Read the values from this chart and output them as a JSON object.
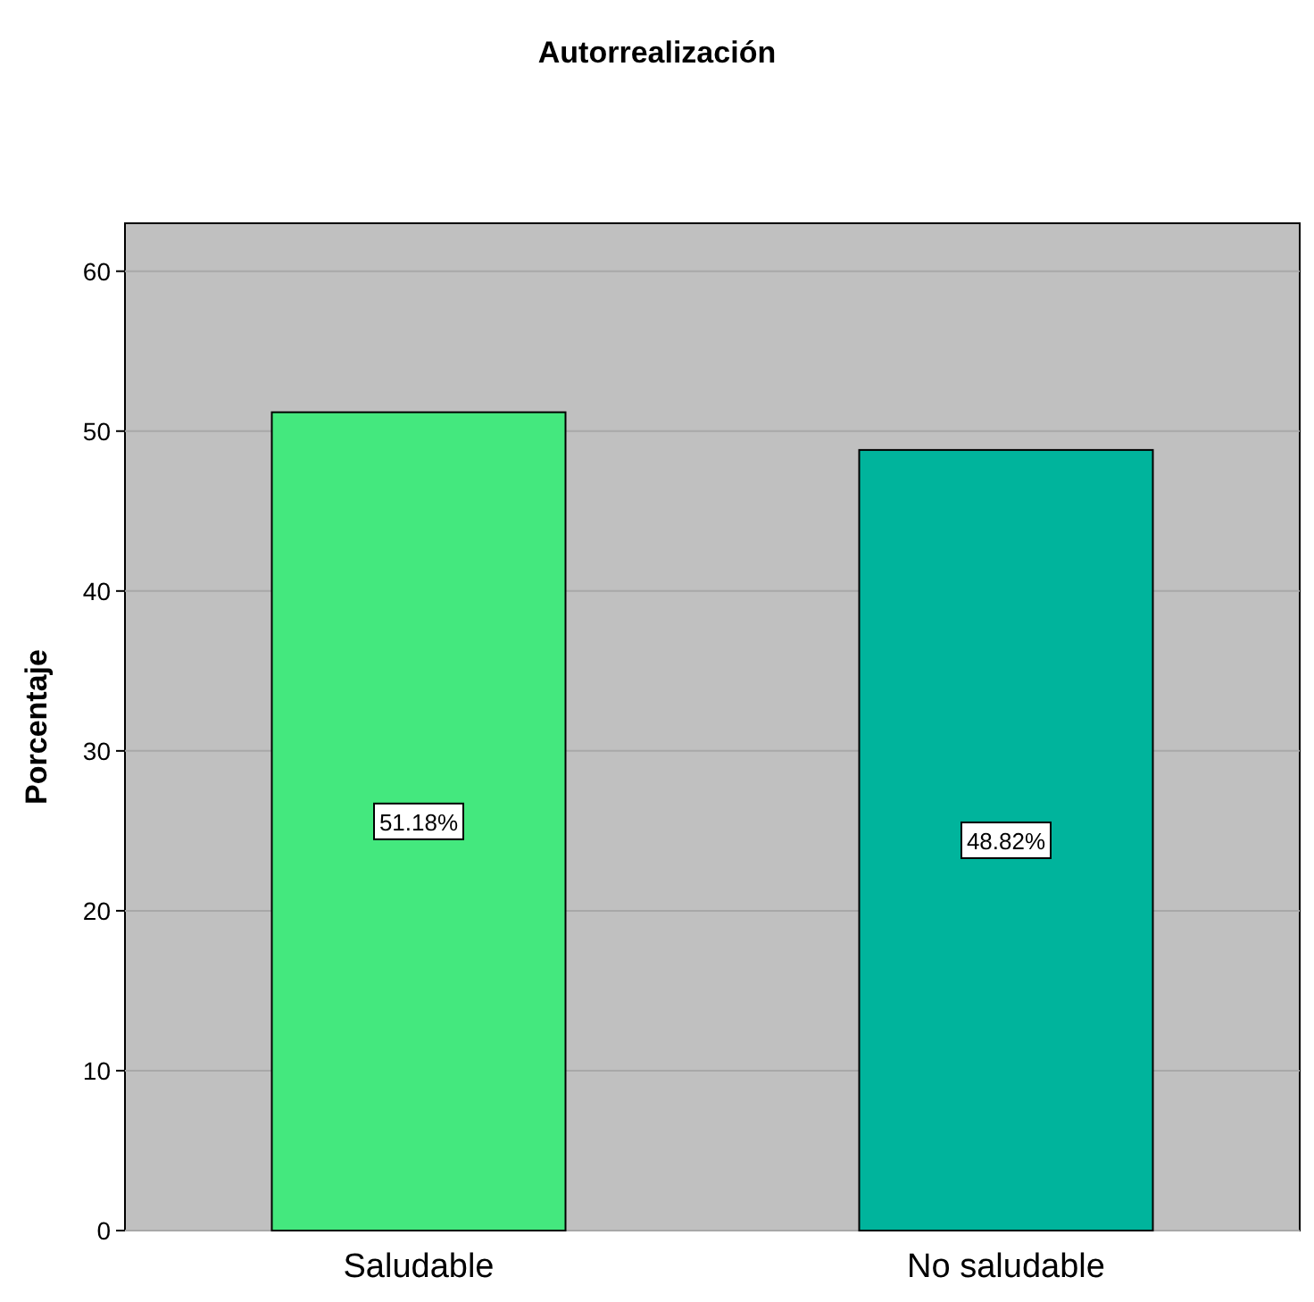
{
  "chart_data": {
    "type": "bar",
    "title": "Autorrealización",
    "ylabel": "Porcentaje",
    "categories": [
      "Saludable",
      "No saludable"
    ],
    "values": [
      51.18,
      48.82
    ],
    "colors": [
      "#44e87e",
      "#00b49c"
    ],
    "value_labels": [
      "51.18%",
      "48.82%"
    ],
    "ylim": [
      0,
      63
    ],
    "yticks": [
      0,
      10,
      20,
      30,
      40,
      50,
      60
    ],
    "grid": "y"
  }
}
